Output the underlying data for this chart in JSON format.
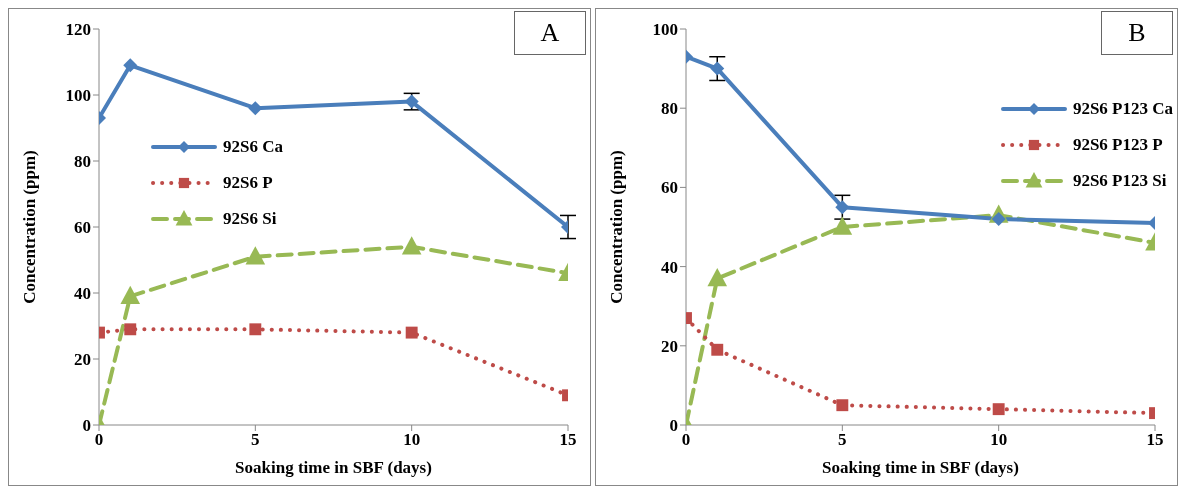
{
  "chart_data": [
    {
      "type": "line",
      "title": "A",
      "xlabel": "Soaking time in SBF (days)",
      "ylabel": "Concentration  (ppm)",
      "x": [
        0,
        1,
        5,
        10,
        15
      ],
      "xlim": [
        0,
        15
      ],
      "xticks": [
        0,
        5,
        10,
        15
      ],
      "ylim": [
        0,
        120
      ],
      "yticks": [
        0,
        20,
        40,
        60,
        80,
        100,
        120
      ],
      "grid": false,
      "legend": "top left",
      "series": [
        {
          "name": "92S6  Ca",
          "color": "#4a7ebb",
          "values": [
            93,
            109,
            96,
            98,
            60
          ],
          "errors": [
            null,
            null,
            null,
            2.5,
            3.5
          ],
          "marker": "diamond",
          "line_style": "solid"
        },
        {
          "name": "92S6  P",
          "color": "#be4b48",
          "values": [
            28,
            29,
            29,
            28,
            9
          ],
          "marker": "square",
          "line_style": "dotted"
        },
        {
          "name": "92S6  Si",
          "color": "#98b954",
          "values": [
            0,
            39,
            51,
            54,
            46
          ],
          "marker": "triangle",
          "line_style": "dashed"
        }
      ]
    },
    {
      "type": "line",
      "title": "B",
      "xlabel": "Soaking time in SBF (days)",
      "ylabel": "Concentration  (ppm)",
      "x": [
        0,
        1,
        5,
        10,
        15
      ],
      "xlim": [
        0,
        15
      ],
      "xticks": [
        0,
        5,
        10,
        15
      ],
      "ylim": [
        0,
        100
      ],
      "yticks": [
        0,
        20,
        40,
        60,
        80,
        100
      ],
      "grid": false,
      "legend": "top right",
      "series": [
        {
          "name": "92S6 P123 Ca",
          "color": "#4a7ebb",
          "values": [
            93,
            90,
            55,
            52,
            51
          ],
          "errors": [
            null,
            3,
            3,
            null,
            null
          ],
          "marker": "diamond",
          "line_style": "solid"
        },
        {
          "name": "92S6 P123 P",
          "color": "#be4b48",
          "values": [
            27,
            19,
            5,
            4,
            3
          ],
          "marker": "square",
          "line_style": "dotted"
        },
        {
          "name": "92S6 P123 Si",
          "color": "#98b954",
          "values": [
            0,
            37,
            50,
            53,
            46
          ],
          "marker": "triangle",
          "line_style": "dashed"
        }
      ]
    }
  ]
}
